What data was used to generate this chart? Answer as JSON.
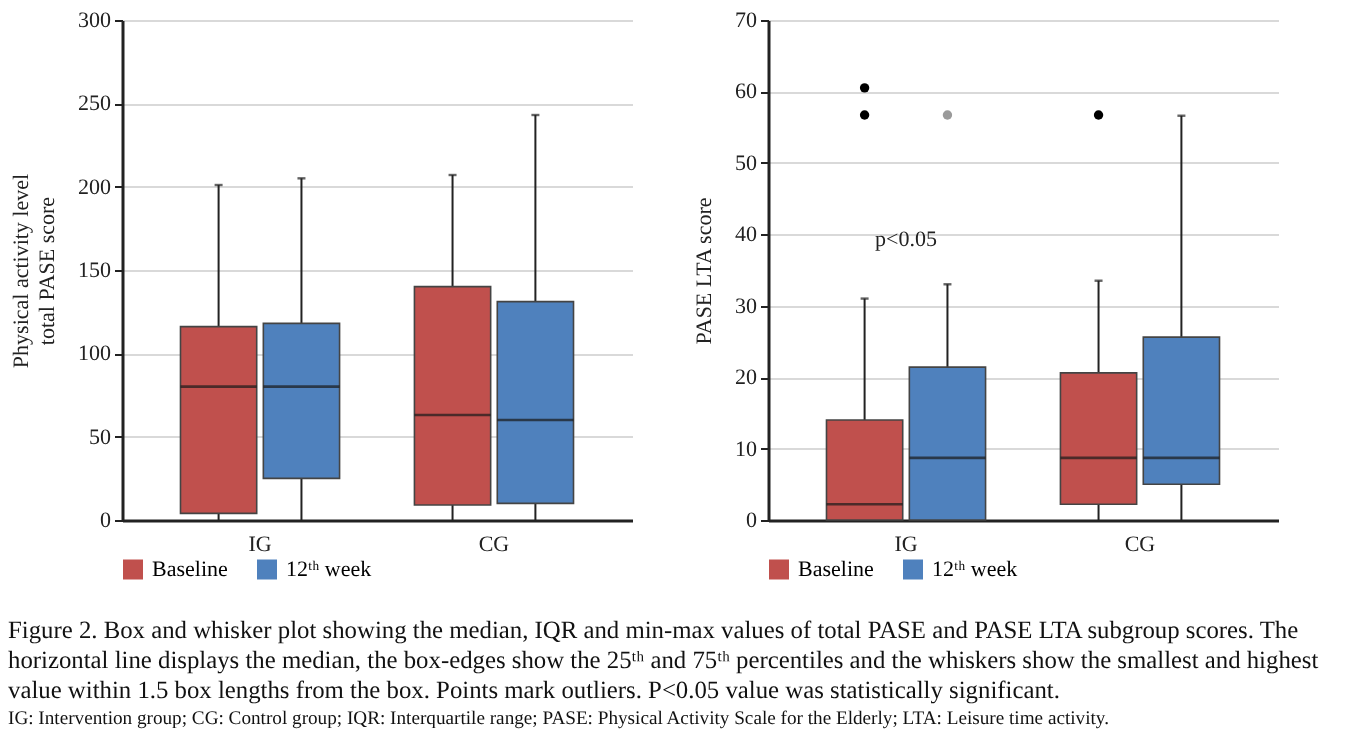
{
  "chart_data": [
    {
      "type": "box",
      "ylabel": "Physical activity level\ntotal PASE score",
      "categories": [
        "IG",
        "CG"
      ],
      "ylim": [
        0,
        300
      ],
      "yticks": [
        0,
        50,
        100,
        150,
        200,
        250,
        300
      ],
      "grid": "y",
      "legend": "bottom",
      "series": [
        {
          "name": "Baseline",
          "color": "#c0504d",
          "boxes": [
            {
              "low": 0,
              "q1": 4,
              "median": 80,
              "q3": 116,
              "high": 201
            },
            {
              "low": 0,
              "q1": 9,
              "median": 63,
              "q3": 140,
              "high": 207
            }
          ]
        },
        {
          "name": "12ᵗʰ week",
          "color": "#4f81bd",
          "boxes": [
            {
              "low": 0,
              "q1": 25,
              "median": 80,
              "q3": 118,
              "high": 205
            },
            {
              "low": 0,
              "q1": 10,
              "median": 60,
              "q3": 131,
              "high": 243
            }
          ]
        }
      ]
    },
    {
      "type": "other",
      "annotations": [
        "Figure 2. Box and whisker plot showing the median, IQR and min-max values of total PASE and PASE LTA subgroup scores. The horizontal line displays the median, the box-edges show the 25ᵗʰ and 75ᵗʰ percentiles and the whiskers show the smallest and highest value within 1.5 box lengths from the box. Points mark outliers. P<0.05 value was statistically significant.",
        "IG: Intervention group; CG: Control group; IQR: Interquartile range; PASE: Physical Activity Scale for the Elderly; LTA: Leisure time activity."
      ]
    },
    {
      "type": "box",
      "ylabel": "PASE LTA score",
      "categories": [
        "IG",
        "CG"
      ],
      "ylim": [
        0,
        70
      ],
      "yticks": [
        0,
        10,
        20,
        30,
        40,
        50,
        60,
        70
      ],
      "grid": "y",
      "legend": "bottom",
      "series": [
        {
          "name": "Baseline",
          "color": "#c0504d",
          "boxes": [
            {
              "low": 0,
              "q1": 0,
              "median": 2.2,
              "q3": 14,
              "high": 31,
              "outliers": [
                60.5,
                56.7
              ]
            },
            {
              "low": 0,
              "q1": 2.2,
              "median": 8.7,
              "q3": 20.6,
              "high": 33.5,
              "outliers": [
                56.7
              ]
            }
          ]
        },
        {
          "name": "12ᵗʰ week",
          "color": "#4f81bd",
          "boxes": [
            {
              "low": 0,
              "q1": 0,
              "median": 8.7,
              "q3": 21.4,
              "high": 33,
              "outliers": [
                56.7
              ]
            },
            {
              "low": 0,
              "q1": 5,
              "median": 8.7,
              "q3": 25.6,
              "high": 56.6
            }
          ]
        }
      ],
      "annotations": [
        "p<0.05"
      ]
    }
  ]
}
